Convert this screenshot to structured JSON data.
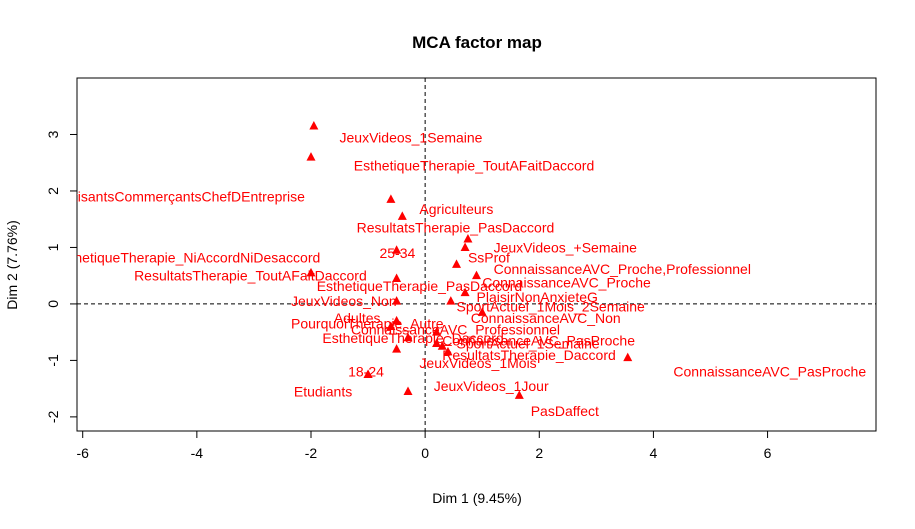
{
  "chart_data": {
    "type": "scatter",
    "title": "MCA factor map",
    "xlabel": "Dim 1 (9.45%)",
    "ylabel": "Dim 2 (7.76%)",
    "xlim": [
      -6.1,
      7.9
    ],
    "ylim": [
      -2.25,
      4.0
    ],
    "xticks": [
      "-6",
      "-4",
      "-2",
      "0",
      "2",
      "4",
      "6"
    ],
    "yticks": [
      "-2",
      "-1",
      "0",
      "1",
      "2",
      "3"
    ],
    "xtick_values": [
      -6,
      -4,
      -2,
      0,
      2,
      4,
      6
    ],
    "ytick_values": [
      -2,
      -1,
      0,
      1,
      2,
      3
    ],
    "point_color": "#ff0000",
    "reference_lines": {
      "x": 0,
      "y": 0,
      "style": "dashed"
    },
    "points": [
      {
        "label": "JeuxVideos_1Semaine",
        "x": -1.95,
        "y": 3.15,
        "lx": -1.5,
        "ly": 2.95
      },
      {
        "label": "EsthetiqueTherapie_ToutAFaitDaccord",
        "x": -2.0,
        "y": 2.6,
        "lx": -1.25,
        "ly": 2.45
      },
      {
        "label": "ArtisantsCommerçantsChefDEntreprise",
        "x": -6.4,
        "y": 2.05,
        "lx": -6.4,
        "ly": 1.9
      },
      {
        "label": "Agriculteurs",
        "x": -0.6,
        "y": 1.85,
        "lx": -0.1,
        "ly": 1.68
      },
      {
        "label": "ResultatsTherapie_PasDaccord",
        "x": -0.4,
        "y": 1.55,
        "lx": -1.2,
        "ly": 1.35
      },
      {
        "label": "JeuxVideos_+Semaine",
        "x": 0.75,
        "y": 1.15,
        "lx": 1.2,
        "ly": 1.0
      },
      {
        "label": "EsthetiqueTherapie_NiAccordNiDesaccord",
        "x": -6.5,
        "y": 0.9,
        "lx": -6.5,
        "ly": 0.82
      },
      {
        "label": "25-34",
        "x": -0.5,
        "y": 0.95,
        "lx": -0.8,
        "ly": 0.9
      },
      {
        "label": "SsProf",
        "x": 0.7,
        "y": 1.0,
        "lx": 0.75,
        "ly": 0.82
      },
      {
        "label": "ConnaissanceAVC_Proche,Professionnel",
        "x": 0.55,
        "y": 0.7,
        "lx": 1.2,
        "ly": 0.62
      },
      {
        "label": "ResultatsTherapie_ToutAFaitDaccord",
        "x": -2.0,
        "y": 0.55,
        "lx": -5.1,
        "ly": 0.5
      },
      {
        "label": "ConnaissanceAVC_Proche",
        "x": 0.9,
        "y": 0.5,
        "lx": 1.0,
        "ly": 0.38
      },
      {
        "label": "EsthetiqueTherapie_PasDaccord",
        "x": -0.5,
        "y": 0.45,
        "lx": -1.9,
        "ly": 0.32
      },
      {
        "label": "PlaisirNonAnxieteG",
        "x": 0.7,
        "y": 0.2,
        "lx": 0.9,
        "ly": 0.12
      },
      {
        "label": "SportActuel_1Mois_2Semaine",
        "x": 0.45,
        "y": 0.05,
        "lx": 0.55,
        "ly": -0.05
      },
      {
        "label": "JeuxVideos_Non",
        "x": -0.5,
        "y": 0.05,
        "lx": -2.35,
        "ly": 0.05
      },
      {
        "label": "ConnaissanceAVC_Non",
        "x": 1.0,
        "y": -0.15,
        "lx": 0.8,
        "ly": -0.25
      },
      {
        "label": "Adultes",
        "x": -0.5,
        "y": -0.3,
        "lx": -1.6,
        "ly": -0.25
      },
      {
        "label": "PourquoiTherapie_Autre",
        "x": -0.6,
        "y": -0.4,
        "lx": -2.35,
        "ly": -0.35
      },
      {
        "label": "ConnaissanceAVC_Professionnel",
        "x": 0.2,
        "y": -0.5,
        "lx": -1.3,
        "ly": -0.45
      },
      {
        "label": "EsthetiqueTherapie_Daccord",
        "x": -0.3,
        "y": -0.6,
        "lx": -1.8,
        "ly": -0.6
      },
      {
        "label": "ConnaissanceAVC_PasProche",
        "x": 0.2,
        "y": -0.7,
        "lx": 0.3,
        "ly": -0.65
      },
      {
        "label": "SportActuel_1Semaine",
        "x": 0.3,
        "y": -0.75,
        "lx": 0.55,
        "ly": -0.7
      },
      {
        "label": "ResultatsTherapie_Daccord",
        "x": 0.4,
        "y": -0.85,
        "lx": 0.3,
        "ly": -0.9
      },
      {
        "label": "JeuxVideos_1Mois",
        "x": -0.5,
        "y": -0.8,
        "lx": -0.1,
        "ly": -1.05
      },
      {
        "label": "ConnaissanceAVC_PasProche",
        "x": 3.55,
        "y": -0.95,
        "lx": 4.35,
        "ly": -1.2
      },
      {
        "label": "18-24",
        "x": -1.0,
        "y": -1.25,
        "lx": -1.35,
        "ly": -1.2
      },
      {
        "label": "JeuxVideos_1Jour",
        "x": -0.3,
        "y": -1.55,
        "lx": 0.15,
        "ly": -1.45
      },
      {
        "label": "Etudiants",
        "x": -1.0,
        "y": -1.25,
        "lx": -2.3,
        "ly": -1.55
      },
      {
        "label": "PasDaffect",
        "x": 1.65,
        "y": -1.62,
        "lx": 1.85,
        "ly": -1.9
      }
    ]
  }
}
